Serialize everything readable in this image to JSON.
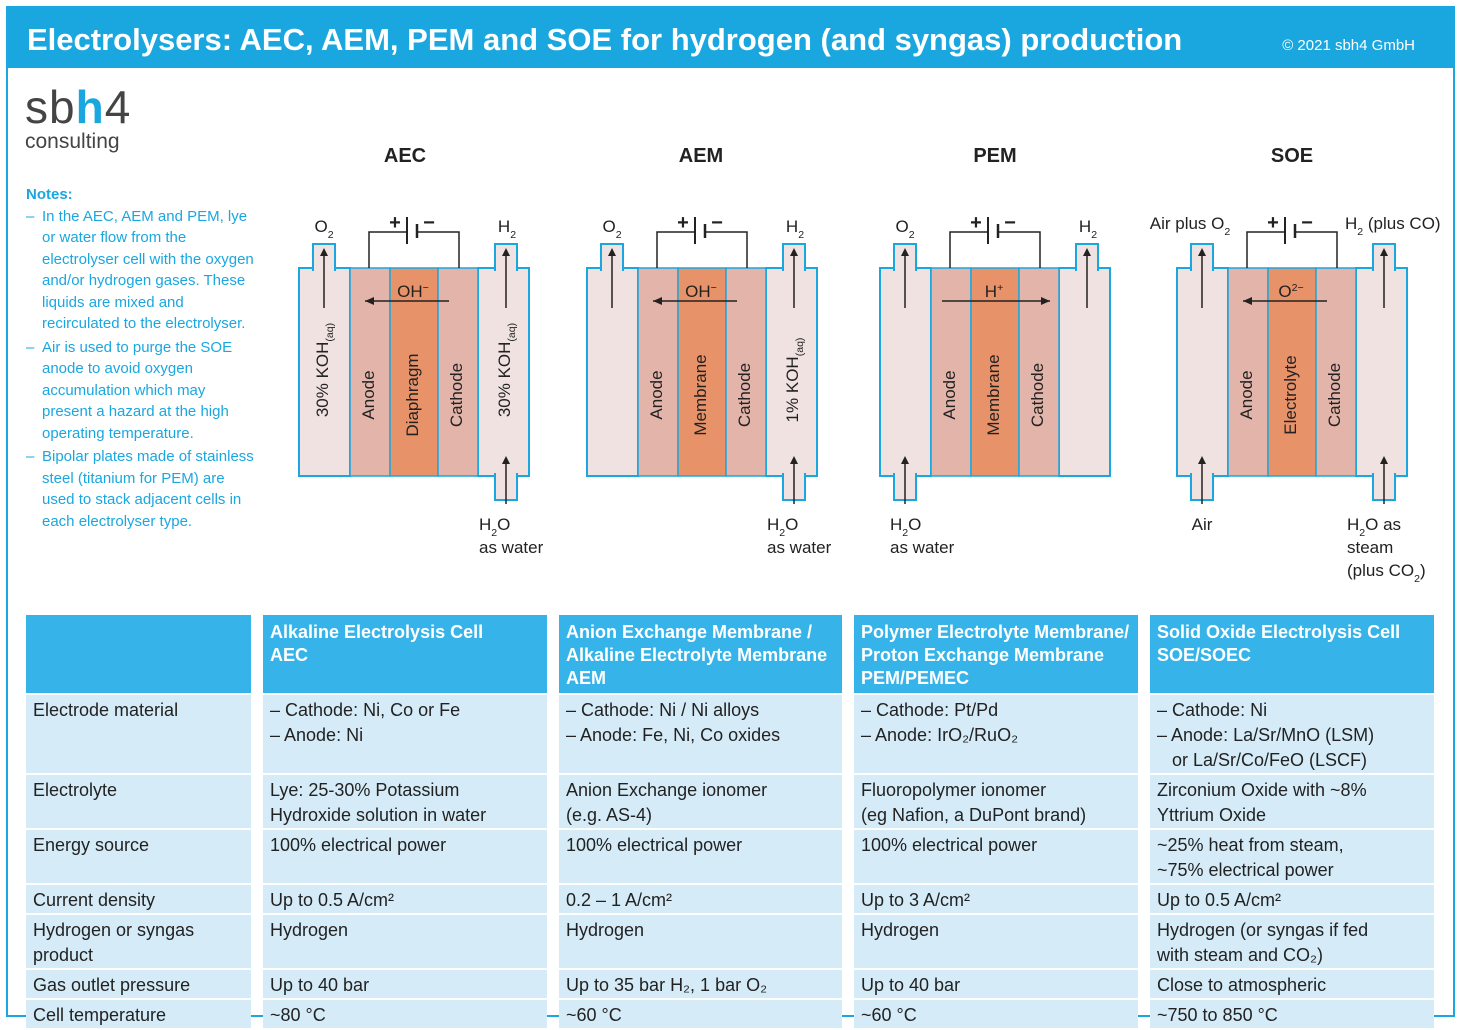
{
  "header": {
    "title": "Electrolysers: AEC, AEM, PEM and SOE for hydrogen (and syngas) production",
    "copyright": "© 2021 sbh4 GmbH"
  },
  "logo": {
    "sb": "sb",
    "h": "h",
    "four": "4",
    "sub": "consulting"
  },
  "notes": {
    "heading": "Notes:",
    "items": [
      "In the AEC, AEM and PEM, lye or water flow from the electrolyser cell with the oxygen and/or hydrogen gases. These liquids are mixed and recirculated to the electrolyser.",
      "Air is used to purge the SOE anode to avoid oxygen accumulation which may present a hazard at the high operating temperature.",
      "Bipolar plates made of stainless steel (titanium for PEM) are used to stack adjacent cells in each electrolyser type."
    ]
  },
  "diagrams": [
    {
      "title": "AEC",
      "left_out": "O₂",
      "right_out": "H₂",
      "ion": "OH⁻",
      "ion_dir": "left",
      "left_fluid": "30% KOH(aq)",
      "anode": "Anode",
      "mid": "Diaphragm",
      "cathode": "Cathode",
      "right_fluid": "30% KOH(aq)",
      "left_in": "",
      "right_in": "H₂O as water"
    },
    {
      "title": "AEM",
      "left_out": "O₂",
      "right_out": "H₂",
      "ion": "OH⁻",
      "ion_dir": "left",
      "left_fluid": "",
      "anode": "Anode",
      "mid": "Membrane",
      "cathode": "Cathode",
      "right_fluid": "1% KOH(aq)",
      "left_in": "",
      "right_in": "H₂O as water"
    },
    {
      "title": "PEM",
      "left_out": "O₂",
      "right_out": "H₂",
      "ion": "H⁺",
      "ion_dir": "right",
      "left_fluid": "",
      "anode": "Anode",
      "mid": "Membrane",
      "cathode": "Cathode",
      "right_fluid": "",
      "left_in": "H₂O as water",
      "right_in": ""
    },
    {
      "title": "SOE",
      "left_out": "Air plus O₂",
      "right_out": "H₂ (plus CO)",
      "ion": "O²⁻",
      "ion_dir": "left",
      "left_fluid": "",
      "anode": "Anode",
      "mid": "Electrolyte",
      "cathode": "Cathode",
      "right_fluid": "",
      "left_in": "Air",
      "right_in": "H₂O as steam (plus CO₂)"
    }
  ],
  "diagram_text": {
    "plus": "+",
    "minus": "−",
    "o2": "O",
    "h2": "H",
    "sub2": "2",
    "oh": "OH",
    "minus_sup": "−",
    "hplus": "H",
    "plus_sup": "+",
    "o2m": "O",
    "o2m_sup": "2−",
    "koh30": "30% KOH",
    "koh1": "1% KOH",
    "aq": "(aq)",
    "h2o": "H",
    "o": "O",
    "as_water": "as water",
    "as_steam": "as",
    "steam": "steam",
    "plus_co2": "(plus CO",
    "co2_close": ")",
    "air": "Air",
    "air_plus": "Air plus O",
    "h2_plus_co": "(plus CO)"
  },
  "table": {
    "columns": [
      "Alkaline Electrolysis Cell AEC",
      "Anion Exchange Membrane / Alkaline Electrolyte Membrane AEM",
      "Polymer Electrolyte Membrane/ Proton Exchange Membrane PEM/PEMEC",
      "Solid Oxide Electrolysis Cell SOE/SOEC"
    ],
    "col_lines": [
      [
        "Alkaline Electrolysis Cell",
        "AEC"
      ],
      [
        "Anion Exchange Membrane /",
        "Alkaline Electrolyte Membrane",
        "AEM"
      ],
      [
        "Polymer Electrolyte Membrane/",
        "Proton Exchange Membrane",
        "PEM/PEMEC"
      ],
      [
        "Solid Oxide Electrolysis Cell",
        "SOE/SOEC"
      ]
    ],
    "rows": [
      {
        "label": "Electrode material",
        "cells": [
          "– Cathode: Ni, Co or Fe\n– Anode: Ni",
          "– Cathode: Ni / Ni alloys\n– Anode: Fe, Ni, Co oxides",
          "– Cathode: Pt/Pd\n– Anode: IrO₂/RuO₂",
          "– Cathode: Ni\n– Anode: La/Sr/MnO (LSM)\n  or La/Sr/Co/FeO (LSCF)"
        ]
      },
      {
        "label": "Electrolyte",
        "cells": [
          "Lye: 25-30% Potassium\nHydroxide solution in water",
          "Anion Exchange ionomer\n(e.g. AS-4)",
          "Fluoropolymer ionomer\n(eg Nafion, a DuPont brand)",
          "Zirconium Oxide with ~8%\nYttrium Oxide"
        ]
      },
      {
        "label": "Energy source",
        "cells": [
          "100% electrical power",
          "100% electrical power",
          "100% electrical power",
          "~25% heat from steam,\n~75% electrical power"
        ]
      },
      {
        "label": "Current density",
        "cells": [
          "Up to 0.5 A/cm²",
          "0.2 – 1 A/cm²",
          "Up to 3 A/cm²",
          "Up to 0.5 A/cm²"
        ]
      },
      {
        "label": "Hydrogen or syngas\nproduct",
        "cells": [
          "Hydrogen",
          "Hydrogen",
          "Hydrogen",
          "Hydrogen (or syngas if fed\nwith steam and CO₂)"
        ]
      },
      {
        "label": "Gas outlet pressure",
        "cells": [
          "Up to 40 bar",
          "Up to 35 bar H₂, 1 bar O₂",
          "Up to 40 bar",
          "Close to atmospheric"
        ]
      },
      {
        "label": "Cell temperature",
        "cells": [
          "~80 °C",
          "~60 °C",
          "~60 °C",
          "~750 to 850 °C"
        ]
      }
    ]
  },
  "colors": {
    "brand": "#1aa7e0",
    "header_cell": "#36b4ea",
    "row_bg": "#d5ecf8",
    "fluid": "#f0e2e0",
    "electrode": "#e3b5aa",
    "core": "#e8926a"
  }
}
